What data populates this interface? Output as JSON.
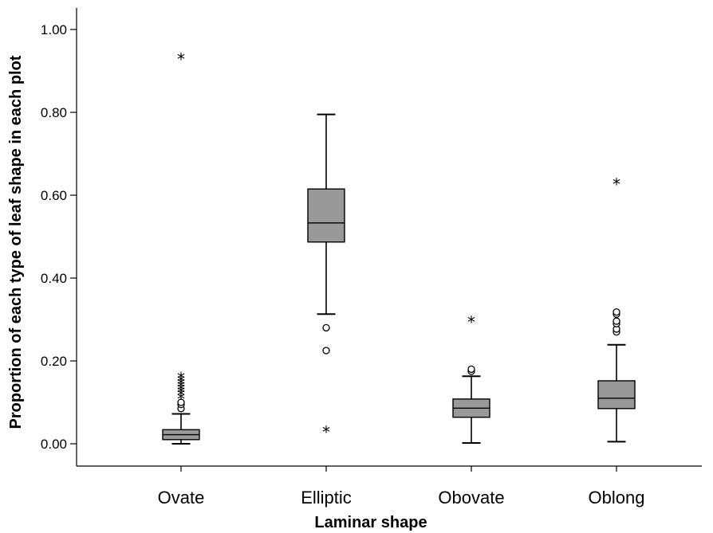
{
  "chart_data": {
    "type": "box",
    "xlabel": "Laminar shape",
    "ylabel": "Proportion of each type of leaf shape in each plot",
    "ylim": [
      -0.05,
      1.05
    ],
    "yticks": [
      0.0,
      0.2,
      0.4,
      0.6,
      0.8,
      1.0
    ],
    "ytick_labels": [
      "0.00",
      "0.20",
      "0.40",
      "0.60",
      "0.80",
      "1.00"
    ],
    "grid": false,
    "box_color": "#999999",
    "categories": [
      "Ovate",
      "Elliptic",
      "Obovate",
      "Oblong"
    ],
    "boxes": [
      {
        "category": "Ovate",
        "whisker_low": 0.0,
        "q1": 0.01,
        "median": 0.022,
        "q3": 0.034,
        "whisker_high": 0.072,
        "outliers": [
          0.085,
          0.095,
          0.1
        ],
        "extremes": [
          0.11,
          0.118,
          0.125,
          0.132,
          0.138,
          0.145,
          0.152,
          0.16,
          0.93
        ]
      },
      {
        "category": "Elliptic",
        "whisker_low": 0.313,
        "q1": 0.487,
        "median": 0.533,
        "q3": 0.615,
        "whisker_high": 0.795,
        "outliers": [
          0.225,
          0.28
        ],
        "extremes": [
          0.03
        ]
      },
      {
        "category": "Obovate",
        "whisker_low": 0.002,
        "q1": 0.064,
        "median": 0.086,
        "q3": 0.108,
        "whisker_high": 0.163,
        "outliers": [
          0.175,
          0.18
        ],
        "extremes": [
          0.295
        ]
      },
      {
        "category": "Oblong",
        "whisker_low": 0.005,
        "q1": 0.085,
        "median": 0.11,
        "q3": 0.152,
        "whisker_high": 0.239,
        "outliers": [
          0.27,
          0.277,
          0.29,
          0.296,
          0.313,
          0.318
        ],
        "extremes": [
          0.628
        ]
      }
    ]
  }
}
